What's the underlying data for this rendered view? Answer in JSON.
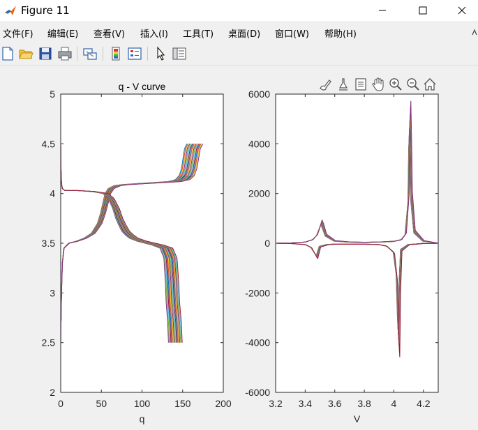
{
  "window": {
    "title": "Figure 11",
    "controls": [
      "minimize",
      "maximize",
      "close"
    ]
  },
  "menu": [
    "文件(F)",
    "编辑(E)",
    "查看(V)",
    "插入(I)",
    "工具(T)",
    "桌面(D)",
    "窗口(W)",
    "帮助(H)"
  ],
  "toolbar": [
    "new-figure-icon",
    "open-file-icon",
    "save-icon",
    "print-icon",
    "link-plot-icon",
    "insert-colorbar-icon",
    "insert-legend-icon",
    "edit-plot-arrow-icon",
    "property-inspector-icon"
  ],
  "axes_toolbar": [
    "brush-icon",
    "data-tips-icon",
    "restore-view-icon",
    "pan-hand-icon",
    "zoom-in-icon",
    "zoom-out-icon",
    "home-icon"
  ],
  "chart_data": [
    {
      "type": "line",
      "title": "q - V curve",
      "xlabel": "q",
      "ylabel": "",
      "xlim": [
        0,
        200
      ],
      "ylim": [
        2,
        5
      ],
      "xticks": [
        0,
        50,
        100,
        150,
        200
      ],
      "yticks": [
        2,
        2.5,
        3,
        3.5,
        4,
        4.5,
        5
      ],
      "grid": false,
      "series": [
        {
          "label_role": "charge",
          "x": [
            0,
            1,
            2,
            4,
            10,
            20,
            30,
            40,
            48,
            52,
            55,
            58,
            62,
            70,
            80,
            100,
            120,
            140,
            150,
            155,
            158,
            160,
            162,
            165
          ],
          "y": [
            2.5,
            3.0,
            3.3,
            3.45,
            3.5,
            3.52,
            3.55,
            3.6,
            3.7,
            3.8,
            3.9,
            4.0,
            4.05,
            4.08,
            4.09,
            4.1,
            4.11,
            4.12,
            4.14,
            4.18,
            4.25,
            4.35,
            4.45,
            4.5
          ]
        },
        {
          "label_role": "discharge",
          "x": [
            0,
            0.5,
            1,
            2,
            5,
            10,
            20,
            40,
            55,
            62,
            68,
            72,
            76,
            80,
            85,
            90,
            100,
            110,
            120,
            130,
            135,
            137,
            138,
            140,
            141
          ],
          "y": [
            4.5,
            4.2,
            4.1,
            4.05,
            4.03,
            4.03,
            4.03,
            4.02,
            4.0,
            3.95,
            3.85,
            3.75,
            3.68,
            3.62,
            3.58,
            3.55,
            3.52,
            3.5,
            3.48,
            3.45,
            3.35,
            3.1,
            2.9,
            2.7,
            2.5
          ]
        }
      ]
    },
    {
      "type": "line",
      "title": "",
      "xlabel": "V",
      "ylabel": "",
      "xlim": [
        3.2,
        4.3
      ],
      "ylim": [
        -6000,
        6000
      ],
      "xticks": [
        3.2,
        3.4,
        3.6,
        3.8,
        4.0,
        4.2
      ],
      "yticks": [
        -6000,
        -4000,
        -2000,
        0,
        2000,
        4000,
        6000
      ],
      "grid": false,
      "series": [
        {
          "label_role": "charge dq/dV",
          "x": [
            3.2,
            3.3,
            3.4,
            3.45,
            3.48,
            3.5,
            3.51,
            3.52,
            3.54,
            3.6,
            3.7,
            3.8,
            3.9,
            4.0,
            4.05,
            4.08,
            4.1,
            4.105,
            4.11,
            4.115,
            4.12,
            4.14,
            4.2,
            4.3
          ],
          "y": [
            0,
            10,
            50,
            150,
            350,
            700,
            900,
            750,
            350,
            100,
            50,
            40,
            50,
            80,
            150,
            400,
            2000,
            4500,
            5500,
            4000,
            2000,
            500,
            100,
            0
          ]
        },
        {
          "label_role": "discharge dq/dV",
          "x": [
            3.2,
            3.3,
            3.4,
            3.44,
            3.47,
            3.48,
            3.5,
            3.55,
            3.6,
            3.8,
            3.9,
            3.95,
            4.0,
            4.02,
            4.03,
            4.035,
            4.04,
            4.05,
            4.1,
            4.2,
            4.3
          ],
          "y": [
            0,
            -10,
            -60,
            -180,
            -500,
            -600,
            -150,
            -60,
            -40,
            -40,
            -60,
            -120,
            -400,
            -1500,
            -3800,
            -4400,
            -2000,
            -300,
            -60,
            -10,
            0
          ]
        }
      ]
    }
  ]
}
